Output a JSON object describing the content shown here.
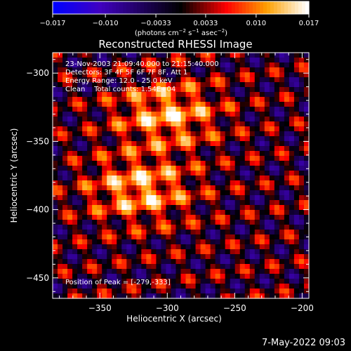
{
  "chart_data": {
    "type": "heatmap",
    "title": "Reconstructed RHESSI Image",
    "xlabel": "Heliocentric X (arcsec)",
    "ylabel": "Heliocentric Y (arcsec)",
    "xlim": [
      -385,
      -195
    ],
    "ylim": [
      -465,
      -285
    ],
    "xticks": [
      -350,
      -300,
      -250,
      -200
    ],
    "yticks": [
      -300,
      -350,
      -400,
      -450
    ],
    "xtick_labels": [
      "−350",
      "−300",
      "−250",
      "−200"
    ],
    "ytick_labels": [
      "−300",
      "−350",
      "−400",
      "−450"
    ],
    "colorbar": {
      "range": [
        -0.017,
        0.017
      ],
      "ticks": [
        -0.017,
        -0.01,
        -0.0033,
        0.0033,
        0.01,
        0.017
      ],
      "tick_labels": [
        "−0.017",
        "−0.010",
        "−0.0033",
        "0.0033",
        "0.010",
        "0.017"
      ],
      "unit_main": "(photons cm",
      "unit_exp1": "−2",
      "unit_mid": " s",
      "unit_exp2": "−1",
      "unit_end": " asec",
      "unit_exp3": "−2",
      "unit_close": ")"
    },
    "peak": [
      -279,
      -333
    ],
    "sources": [
      {
        "x": -300,
        "y": -330,
        "amplitude": 0.017
      },
      {
        "x": -320,
        "y": -385,
        "amplitude": 0.017
      }
    ],
    "colormap": [
      "#0000ff",
      "#4000c0",
      "#000000",
      "#ff0000",
      "#ffa000",
      "#ffffff"
    ]
  },
  "annotations": {
    "line1": "23-Nov-2003 21:09:40.000 to 21:15:40.000",
    "line2": "Detectors: 3F 4F 5F 6F 7F 8F, Att 1",
    "line3": "Energy Range: 12.0 - 25.0 keV",
    "line4": "Clean    Total counts: 1.54E+04",
    "peak_label": "Position of Peak = [-279,-333]"
  },
  "footer": {
    "datestamp": "7-May-2022 09:03"
  }
}
